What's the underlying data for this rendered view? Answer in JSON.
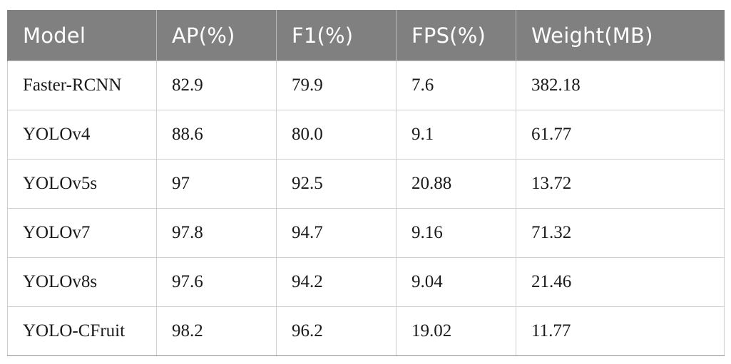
{
  "table": {
    "headers": [
      "Model",
      "AP(%)",
      "F1(%)",
      "FPS(%)",
      "Weight(MB)"
    ],
    "rows": [
      [
        "Faster-RCNN",
        "82.9",
        "79.9",
        "7.6",
        "382.18"
      ],
      [
        "YOLOv4",
        "88.6",
        "80.0",
        "9.1",
        "61.77"
      ],
      [
        "YOLOv5s",
        "97",
        "92.5",
        "20.88",
        "13.72"
      ],
      [
        "YOLOv7",
        "97.8",
        "94.7",
        "9.16",
        "71.32"
      ],
      [
        "YOLOv8s",
        "97.6",
        "94.2",
        "9.04",
        "21.46"
      ],
      [
        "YOLO-CFruit",
        "98.2",
        "96.2",
        "19.02",
        "11.77"
      ]
    ]
  },
  "colors": {
    "header_background": "#808080",
    "header_text": "#ffffff",
    "cell_text": "#1a1a1a",
    "grid_line": "#cfcfcf"
  }
}
